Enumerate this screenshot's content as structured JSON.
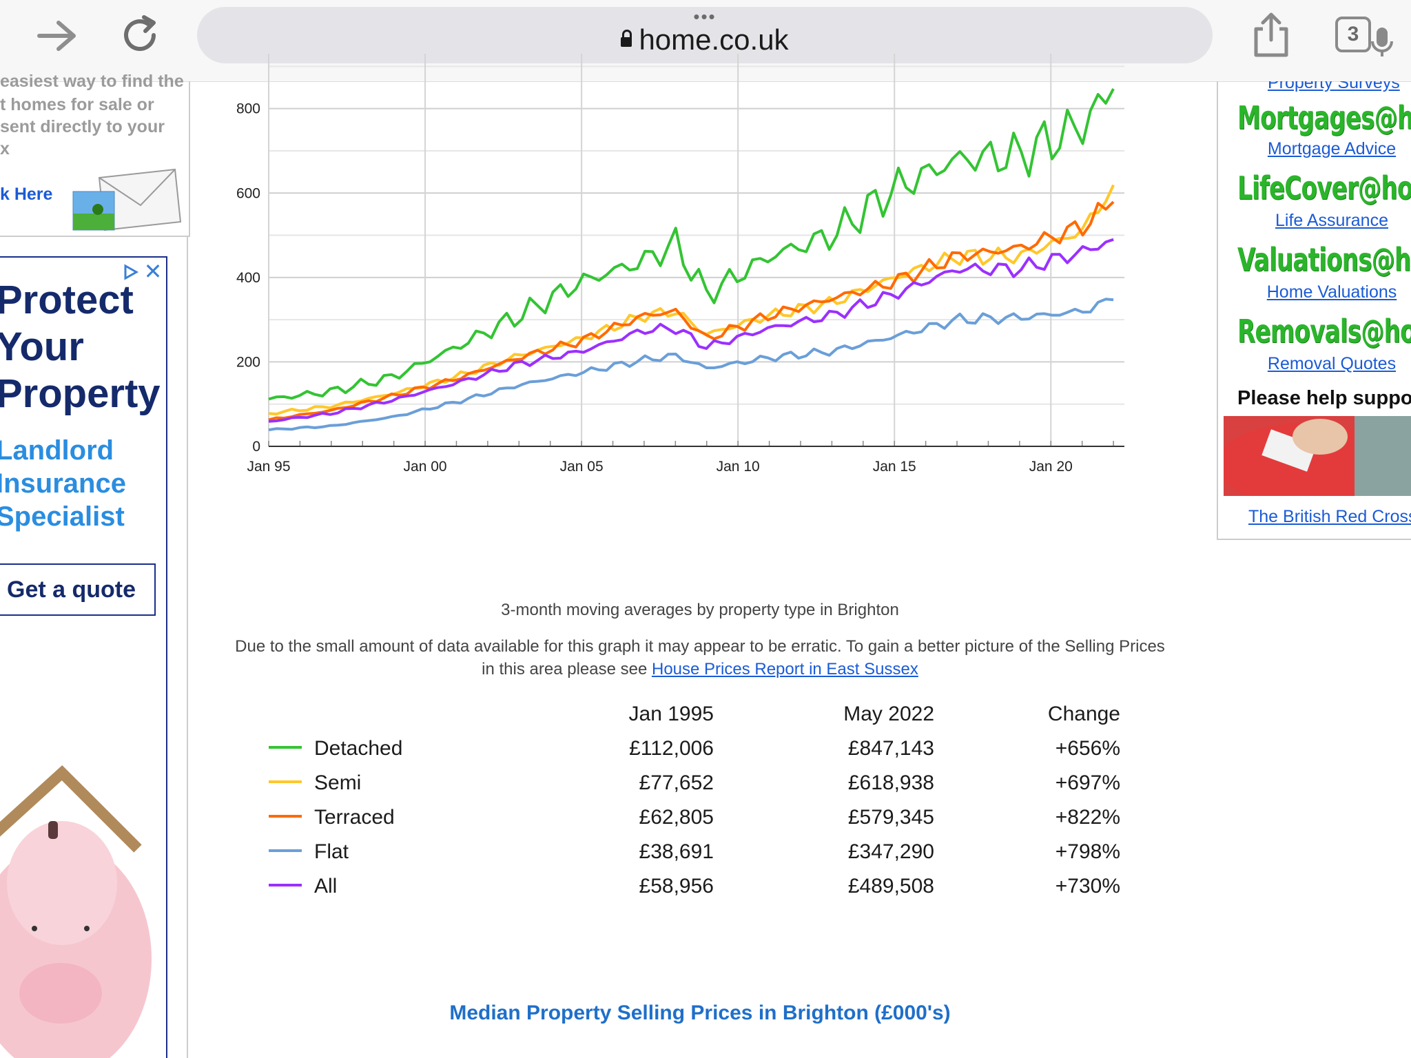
{
  "browser": {
    "url": "home.co.uk",
    "tab_count": "3"
  },
  "left_promo": {
    "lines": [
      "easiest way to find the",
      "t homes for sale or",
      "sent directly to your",
      "x"
    ],
    "click_here": "k Here"
  },
  "ad": {
    "headline_lines": [
      "Protect",
      "Your",
      "Property"
    ],
    "subline_lines": [
      "Landlord",
      "Insurance",
      "Specialist"
    ],
    "cta": "Get a quote"
  },
  "right_col": {
    "top_cut_link": "Property Surveys",
    "services": [
      {
        "logo": "Mortgages@home",
        "link": "Mortgage Advice"
      },
      {
        "logo": "LifeCover@home",
        "link": "Life Assurance"
      },
      {
        "logo": "Valuations@home",
        "link": "Home Valuations"
      },
      {
        "logo": "Removals@home",
        "link": "Removal Quotes"
      }
    ],
    "help_heading": "Please help support",
    "charity_link": "The British Red Cross"
  },
  "chart_caption": "3-month moving averages by property type in Brighton",
  "chart_note": {
    "text": "Due to the small amount of data available for this graph it may appear to be erratic. To gain a better picture of the Selling Prices in this area please see",
    "link": "House Prices Report in East Sussex"
  },
  "table": {
    "headers": [
      "Jan 1995",
      "May 2022",
      "Change"
    ],
    "rows": [
      {
        "name": "Detached",
        "color": "#33c433",
        "start": "£112,006",
        "end": "£847,143",
        "change": "+656%"
      },
      {
        "name": "Semi",
        "color": "#ffc72a",
        "start": "£77,652",
        "end": "£618,938",
        "change": "+697%"
      },
      {
        "name": "Terraced",
        "color": "#ff6a00",
        "start": "£62,805",
        "end": "£579,345",
        "change": "+822%"
      },
      {
        "name": "Flat",
        "color": "#6a9fd8",
        "start": "£38,691",
        "end": "£347,290",
        "change": "+798%"
      },
      {
        "name": "All",
        "color": "#9b30ff",
        "start": "£58,956",
        "end": "£489,508",
        "change": "+730%"
      }
    ]
  },
  "bottom_title": "Median Property Selling Prices in Brighton (£000's)",
  "chart_data": {
    "type": "line",
    "x": [
      1995,
      1997,
      1999,
      2001,
      2003,
      2005,
      2007,
      2008,
      2009,
      2011,
      2013,
      2015,
      2017,
      2019,
      2021,
      2022
    ],
    "x_tick_labels": [
      "Jan 95",
      "Jan 00",
      "Jan 05",
      "Jan 10",
      "Jan 15",
      "Jan 20"
    ],
    "x_tick_values": [
      1995,
      2000,
      2005,
      2010,
      2015,
      2020
    ],
    "ylim": [
      0,
      930
    ],
    "y_ticks": [
      0,
      200,
      400,
      600,
      800
    ],
    "grid": true,
    "series": [
      {
        "name": "Detached",
        "color": "#33c433",
        "values": [
          112,
          130,
          165,
          235,
          310,
          390,
          440,
          480,
          360,
          450,
          500,
          610,
          680,
          690,
          760,
          847
        ]
      },
      {
        "name": "Semi",
        "color": "#ffc72a",
        "values": [
          78,
          95,
          125,
          165,
          215,
          255,
          310,
          320,
          265,
          310,
          340,
          400,
          450,
          450,
          510,
          619
        ]
      },
      {
        "name": "Terraced",
        "color": "#ff6a00",
        "values": [
          63,
          85,
          120,
          160,
          210,
          250,
          310,
          320,
          255,
          310,
          350,
          390,
          450,
          470,
          520,
          579
        ]
      },
      {
        "name": "All",
        "color": "#9b30ff",
        "values": [
          59,
          78,
          110,
          150,
          195,
          225,
          275,
          280,
          235,
          280,
          310,
          360,
          420,
          420,
          460,
          490
        ]
      },
      {
        "name": "Flat",
        "color": "#6a9fd8",
        "values": [
          39,
          48,
          70,
          105,
          145,
          175,
          205,
          215,
          185,
          210,
          225,
          260,
          300,
          305,
          320,
          347
        ]
      }
    ]
  }
}
